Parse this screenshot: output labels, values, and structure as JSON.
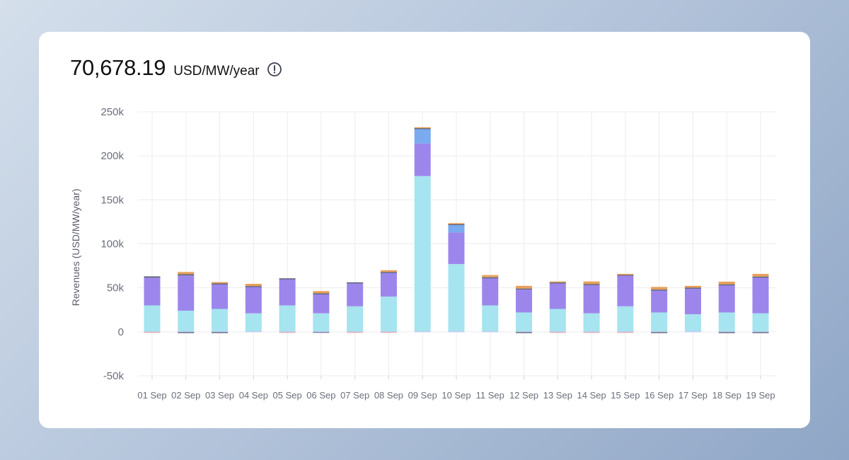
{
  "summary": {
    "value": "70,678.19",
    "unit": "USD/MW/year"
  },
  "icons": {
    "info": "info-circle-icon"
  },
  "colors": {
    "dark": "#5d6478",
    "orange": "#e8a05a",
    "blue": "#7aaaf0",
    "purple": "#9c86ec",
    "cyan": "#a6e4ef",
    "pink": "#f0a6a0",
    "grid": "#ececf0",
    "tick": "#6b6f7b"
  },
  "chart_data": {
    "type": "bar",
    "stacked": true,
    "ylabel": "Revenues (USD/MW/year)",
    "xlabel": "",
    "ylim": [
      -50000,
      250000
    ],
    "yticks": [
      -50000,
      0,
      50000,
      100000,
      150000,
      200000,
      250000
    ],
    "ytick_labels": [
      "-50k",
      "0",
      "50k",
      "100k",
      "150k",
      "200k",
      "250k"
    ],
    "grid": true,
    "categories": [
      "01 Sep",
      "02 Sep",
      "03 Sep",
      "04 Sep",
      "05 Sep",
      "06 Sep",
      "07 Sep",
      "08 Sep",
      "09 Sep",
      "10 Sep",
      "11 Sep",
      "12 Sep",
      "13 Sep",
      "14 Sep",
      "15 Sep",
      "16 Sep",
      "17 Sep",
      "18 Sep",
      "19 Sep"
    ],
    "series": [
      {
        "color_key": "cyan",
        "values": [
          30000,
          24000,
          26000,
          21000,
          30000,
          21000,
          29000,
          40000,
          177000,
          77000,
          30000,
          22000,
          26000,
          21000,
          29000,
          22000,
          20000,
          22000,
          21000
        ]
      },
      {
        "color_key": "purple",
        "values": [
          31500,
          40000,
          28000,
          30000,
          30000,
          22000,
          26000,
          27000,
          37000,
          36000,
          31000,
          26000,
          29000,
          32000,
          35000,
          25000,
          29000,
          31000,
          41000
        ]
      },
      {
        "color_key": "blue",
        "values": [
          0,
          0,
          0,
          0,
          0,
          0,
          0,
          0,
          17000,
          9000,
          0,
          0,
          0,
          0,
          0,
          0,
          0,
          0,
          0
        ]
      },
      {
        "color_key": "dark",
        "values": [
          1500,
          1500,
          1000,
          1000,
          800,
          800,
          1200,
          1000,
          500,
          500,
          1000,
          1200,
          1200,
          1200,
          1000,
          1000,
          1200,
          1000,
          800
        ]
      },
      {
        "color_key": "orange",
        "values": [
          0,
          2500,
          1500,
          2500,
          0,
          2500,
          0,
          2000,
          1000,
          1000,
          2500,
          3000,
          1000,
          3000,
          800,
          3000,
          2000,
          3000,
          3000
        ]
      },
      {
        "color_key": "dark",
        "values": [
          0,
          -1500,
          -1500,
          0,
          0,
          -1000,
          0,
          0,
          0,
          0,
          0,
          -1500,
          0,
          0,
          0,
          -1500,
          0,
          -1500,
          -1500
        ],
        "negative": true
      },
      {
        "color_key": "pink",
        "values": [
          -700,
          0,
          0,
          0,
          -700,
          0,
          -700,
          -700,
          0,
          0,
          0,
          0,
          -700,
          -700,
          -700,
          0,
          0,
          0,
          0
        ],
        "negative": true
      }
    ]
  }
}
